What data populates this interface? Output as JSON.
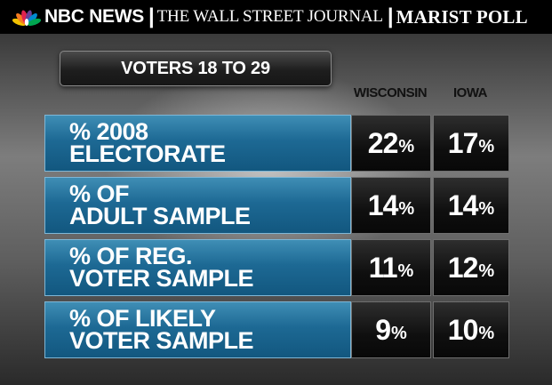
{
  "header": {
    "brand_nbc": "NBC NEWS",
    "brand_wsj": "THE WALL STREET JOURNAL",
    "brand_marist": "MARIST POLL",
    "separator": "|"
  },
  "chart_data": {
    "type": "table",
    "title": "VOTERS 18 TO 29",
    "columns": [
      "WISCONSIN",
      "IOWA"
    ],
    "unit": "%",
    "rows": [
      {
        "label_lines": [
          "% 2008",
          "ELECTORATE"
        ],
        "values": [
          22,
          17
        ]
      },
      {
        "label_lines": [
          "% OF",
          "ADULT SAMPLE"
        ],
        "values": [
          14,
          14
        ]
      },
      {
        "label_lines": [
          "% OF REG.",
          "VOTER SAMPLE"
        ],
        "values": [
          11,
          12
        ]
      },
      {
        "label_lines": [
          "% OF LIKELY",
          "VOTER SAMPLE"
        ],
        "values": [
          9,
          10
        ]
      }
    ]
  },
  "colors": {
    "row_blue": "#1d6994",
    "value_black": "#0f0f0f",
    "text_white": "#ffffff",
    "peacock_feathers": [
      "#f2c200",
      "#f47b20",
      "#e0234e",
      "#6a3f98",
      "#0089d0",
      "#00a651"
    ]
  },
  "icons": {
    "logo": "nbc-peacock-icon"
  }
}
